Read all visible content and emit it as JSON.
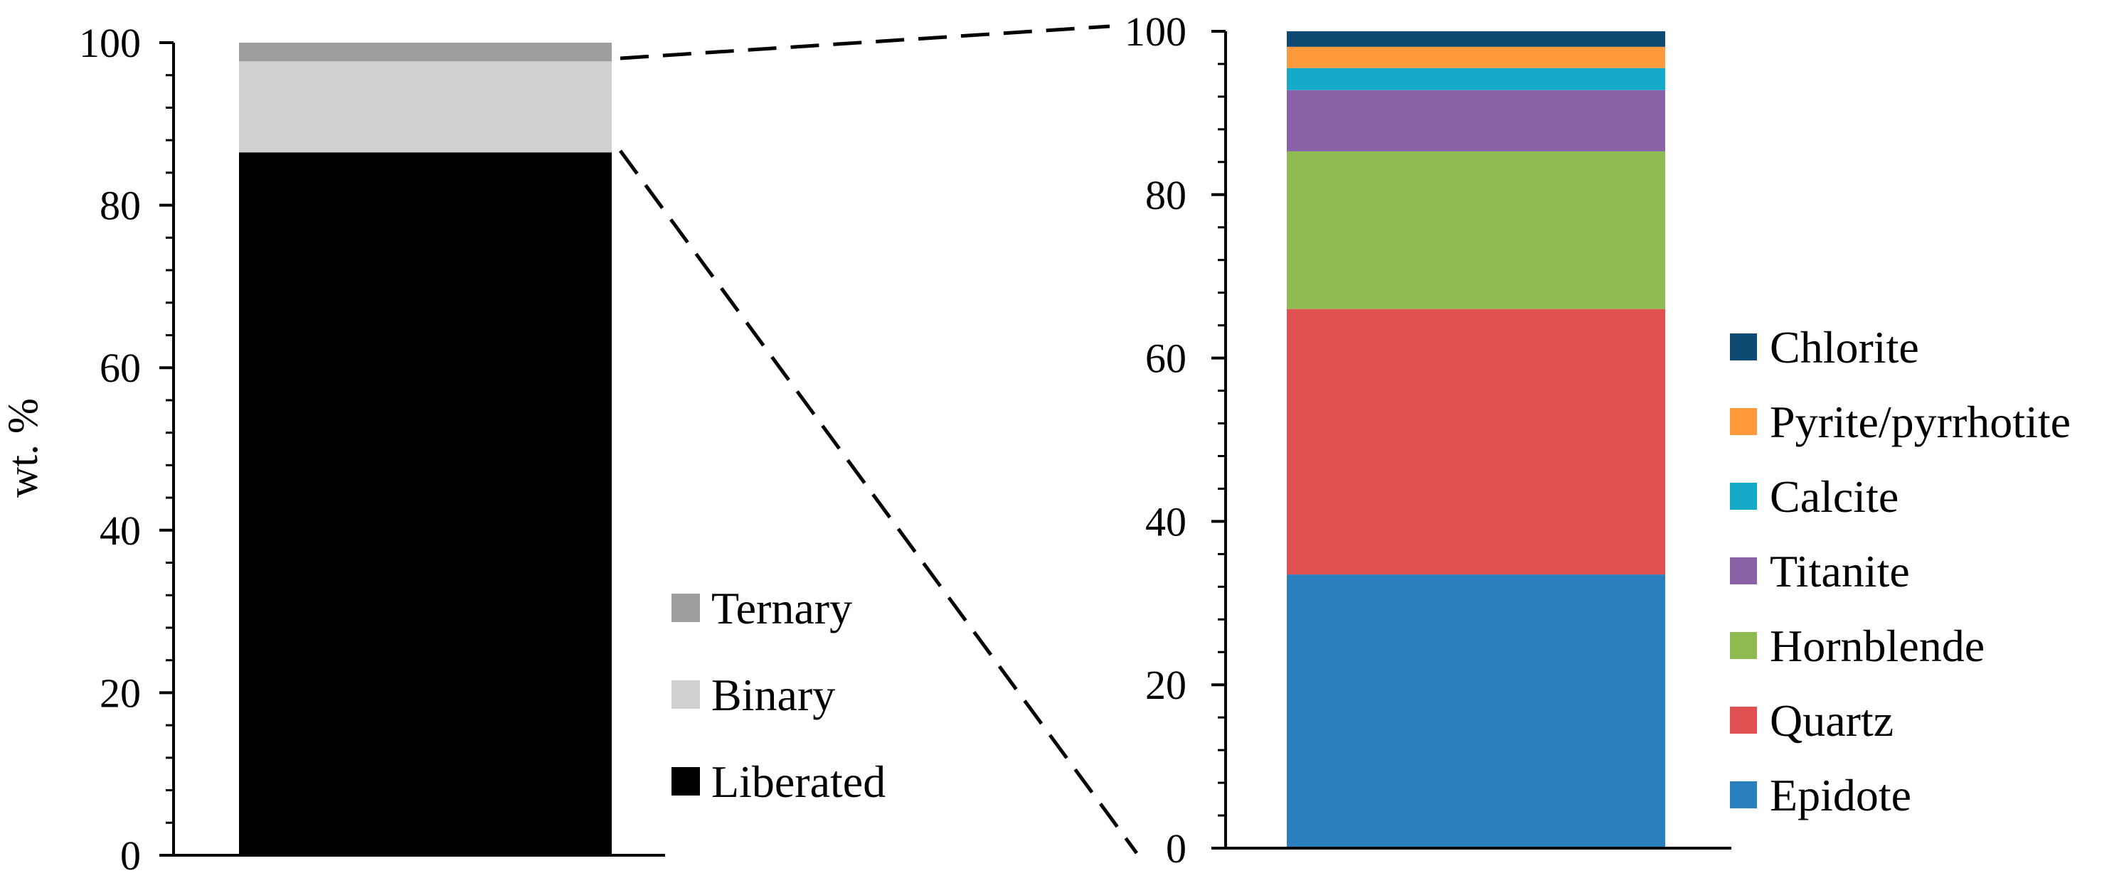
{
  "chart_data": [
    {
      "type": "bar",
      "stacked": true,
      "categories": [
        ""
      ],
      "ylabel": "wt. %",
      "ylim": [
        0,
        100
      ],
      "yticks": [
        0,
        20,
        40,
        60,
        80,
        100
      ],
      "grid": false,
      "legend_position": "bottom-right",
      "series": [
        {
          "name": "Liberated",
          "values": [
            86.5
          ],
          "color": "#000000"
        },
        {
          "name": "Binary",
          "values": [
            11.2
          ],
          "color": "#d0d0d0"
        },
        {
          "name": "Ternary",
          "values": [
            2.3
          ],
          "color": "#9e9e9e"
        }
      ]
    },
    {
      "type": "bar",
      "stacked": true,
      "categories": [
        ""
      ],
      "ylim": [
        0,
        100
      ],
      "yticks": [
        0,
        20,
        40,
        60,
        80,
        100
      ],
      "grid": false,
      "legend_position": "right",
      "series": [
        {
          "name": "Epidote",
          "values": [
            33.5
          ],
          "color": "#2a7fbf"
        },
        {
          "name": "Quartz",
          "values": [
            32.5
          ],
          "color": "#e05050"
        },
        {
          "name": "Hornblende",
          "values": [
            19.3
          ],
          "color": "#8fbc50"
        },
        {
          "name": "Titanite",
          "values": [
            7.5
          ],
          "color": "#8a62a8"
        },
        {
          "name": "Calcite",
          "values": [
            2.7
          ],
          "color": "#15aac8"
        },
        {
          "name": "Pyrite/pyrrhotite",
          "values": [
            2.6
          ],
          "color": "#ff9a3c"
        },
        {
          "name": "Chlorite",
          "values": [
            1.9
          ],
          "color": "#0e4a72"
        }
      ]
    }
  ]
}
